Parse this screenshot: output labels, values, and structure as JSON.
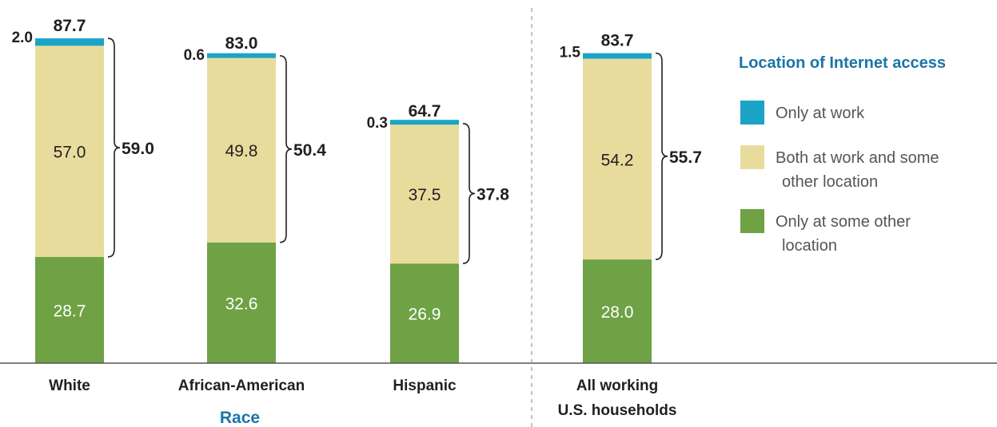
{
  "chart_data": {
    "type": "bar",
    "stacked": true,
    "categories": [
      "White",
      "African-American",
      "Hispanic",
      "All working U.S. households"
    ],
    "category_lines": [
      [
        "White"
      ],
      [
        "African-American"
      ],
      [
        "Hispanic"
      ],
      [
        "All working",
        "U.S. households"
      ]
    ],
    "group_label": "Race",
    "series": [
      {
        "name": "Only at some other location",
        "legend_lines": [
          "Only at some other",
          "location"
        ],
        "color": "#6ea244",
        "values": [
          28.7,
          32.6,
          26.9,
          28.0
        ],
        "labels": [
          "28.7",
          "32.6",
          "26.9",
          "28.0"
        ]
      },
      {
        "name": "Both at work and some other location",
        "legend_lines": [
          "Both at work and some",
          "other location"
        ],
        "color": "#e8dc9d",
        "values": [
          57.0,
          49.8,
          37.5,
          54.2
        ],
        "labels": [
          "57.0",
          "49.8",
          "37.5",
          "54.2"
        ]
      },
      {
        "name": "Only at work",
        "legend_lines": [
          "Only at work"
        ],
        "color": "#1ba4c6",
        "values": [
          2.0,
          0.6,
          0.3,
          1.5
        ],
        "labels": [
          "2.0",
          "0.6",
          "0.3",
          "1.5"
        ]
      }
    ],
    "totals": [
      "87.7",
      "83.0",
      "64.7",
      "83.7"
    ],
    "work_totals": [
      "59.0",
      "50.4",
      "37.8",
      "55.7"
    ],
    "legend_title": "Location of Internet access",
    "legend_position": "right",
    "ylim": [
      0,
      90
    ],
    "grid": false,
    "colors": {
      "accent": "#1b75a8",
      "text": "#231f20",
      "baseline": "#555555",
      "divider": "#999999"
    }
  }
}
